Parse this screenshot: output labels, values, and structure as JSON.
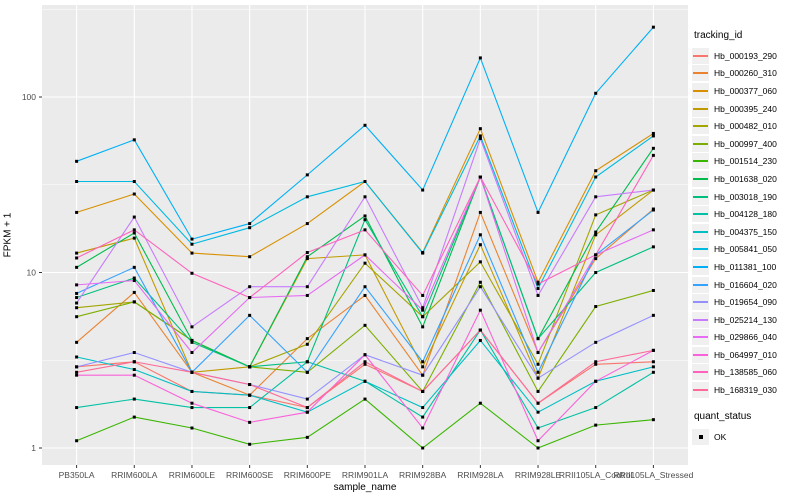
{
  "chart_data": {
    "type": "line",
    "title": "",
    "xlabel": "sample_name",
    "ylabel": "FPKM + 1",
    "yscale": "log10",
    "ylim": [
      1,
      334
    ],
    "yticks": [
      1,
      10,
      100
    ],
    "ytick_labels": [
      "1",
      "10",
      "100"
    ],
    "grid": true,
    "legend_position": "right",
    "legend_title": "tracking_id",
    "legend2_title": "quant_status",
    "legend2_items": [
      {
        "label": "OK",
        "marker": "black-square"
      }
    ],
    "point_marker": "black-square",
    "categories": [
      "PB350LA",
      "RRIM600LA",
      "RRIM600LE",
      "RRIM600SE",
      "RRIM600PE",
      "RRIM901LA",
      "RRIM928BA",
      "RRIM928LA",
      "RRIM928LE",
      "RRII105LA_Control",
      "RRII105LA_Stressed"
    ],
    "series": [
      {
        "name": "Hb_000193_290",
        "color": "#F8766D",
        "values": [
          2.9,
          3.1,
          2.1,
          2.0,
          1.7,
          3.0,
          2.1,
          4.7,
          1.8,
          3.0,
          3.1
        ]
      },
      {
        "name": "Hb_000260_310",
        "color": "#EA8331",
        "values": [
          4.0,
          7.7,
          2.7,
          2.0,
          4.2,
          7.4,
          2.6,
          22,
          3.5,
          12,
          23
        ]
      },
      {
        "name": "Hb_000377_060",
        "color": "#D89000",
        "values": [
          22,
          28,
          12.9,
          12.3,
          19,
          33,
          13,
          66,
          8.8,
          38,
          62
        ]
      },
      {
        "name": "Hb_000395_240",
        "color": "#C09B00",
        "values": [
          12.9,
          15.7,
          2.7,
          2.9,
          12,
          12.6,
          2.9,
          14.4,
          2.5,
          16.4,
          29.5
        ]
      },
      {
        "name": "Hb_000482_010",
        "color": "#A3A500",
        "values": [
          6.3,
          6.8,
          4.1,
          2.9,
          3.9,
          11.3,
          5.6,
          11.5,
          3.0,
          21.3,
          29.5
        ]
      },
      {
        "name": "Hb_000997_400",
        "color": "#7CAE00",
        "values": [
          5.6,
          6.8,
          4.1,
          2.9,
          2.7,
          5.0,
          2.1,
          8.8,
          2.1,
          6.4,
          7.9
        ]
      },
      {
        "name": "Hb_001514_230",
        "color": "#39B600",
        "values": [
          1.1,
          1.5,
          1.3,
          1.05,
          1.15,
          1.9,
          1.0,
          1.8,
          1.0,
          1.35,
          1.45
        ]
      },
      {
        "name": "Hb_001638_020",
        "color": "#00BB4E",
        "values": [
          10.7,
          16.8,
          4.1,
          2.9,
          12.3,
          21,
          4.9,
          35,
          4.2,
          17,
          51
        ]
      },
      {
        "name": "Hb_003018_190",
        "color": "#00BF7D",
        "values": [
          7.2,
          9.3,
          4.0,
          2.9,
          3.1,
          20,
          5.6,
          35,
          4.2,
          10,
          14
        ]
      },
      {
        "name": "Hb_004128_180",
        "color": "#00C1A3",
        "values": [
          1.7,
          1.9,
          1.7,
          1.7,
          3.1,
          2.4,
          1.5,
          4.7,
          1.3,
          1.7,
          2.7
        ]
      },
      {
        "name": "Hb_004375_150",
        "color": "#00BFC4",
        "values": [
          3.3,
          2.8,
          2.1,
          2.0,
          1.6,
          2.4,
          1.7,
          4.1,
          1.6,
          2.4,
          2.9
        ]
      },
      {
        "name": "Hb_005841_050",
        "color": "#00BAE0",
        "values": [
          33,
          33,
          14.5,
          18,
          27,
          33,
          12.9,
          60,
          8.1,
          35,
          60
        ]
      },
      {
        "name": "Hb_011381_100",
        "color": "#00B0F6",
        "values": [
          43,
          57,
          15.5,
          19,
          36,
          69,
          29.5,
          167,
          22,
          105,
          250
        ]
      },
      {
        "name": "Hb_016604_020",
        "color": "#35A2FF",
        "values": [
          7.6,
          10.7,
          2.7,
          5.7,
          2.7,
          8.3,
          3.1,
          16.4,
          2.7,
          12.6,
          22.7
        ]
      },
      {
        "name": "Hb_019654_090",
        "color": "#9590FF",
        "values": [
          2.9,
          3.5,
          2.7,
          2.3,
          1.9,
          3.4,
          2.6,
          8.3,
          2.5,
          4.0,
          5.7
        ]
      },
      {
        "name": "Hb_025214_130",
        "color": "#C77CFF",
        "values": [
          6.7,
          20.7,
          4.9,
          8.3,
          8.3,
          27,
          6.3,
          58,
          7.4,
          27,
          29.5
        ]
      },
      {
        "name": "Hb_029866_040",
        "color": "#E76BF3",
        "values": [
          8.5,
          9.0,
          3.5,
          7.2,
          7.4,
          12.6,
          6.1,
          35,
          3.5,
          12.6,
          17.5
        ]
      },
      {
        "name": "Hb_064997_010",
        "color": "#FA62DB",
        "values": [
          2.6,
          2.6,
          1.8,
          1.4,
          1.6,
          3.4,
          1.3,
          6.1,
          1.1,
          2.4,
          3.6
        ]
      },
      {
        "name": "Hb_138585_060",
        "color": "#FF62BC",
        "values": [
          12.1,
          17.5,
          9.9,
          7.2,
          13,
          17.5,
          7.4,
          35,
          8.6,
          12.6,
          46.5
        ]
      },
      {
        "name": "Hb_168319_030",
        "color": "#FF6A98",
        "values": [
          2.7,
          3.1,
          2.7,
          2.3,
          1.7,
          3.1,
          2.1,
          4.7,
          1.8,
          3.1,
          3.6
        ]
      }
    ],
    "style": {
      "panel_background": "#EBEBEB",
      "grid_color": "#FFFFFF",
      "tick_label_color": "#4D4D4D",
      "axis_title_color": "#000000",
      "point_color": "#000000",
      "legend_key_background": "#F0F0F0"
    }
  }
}
